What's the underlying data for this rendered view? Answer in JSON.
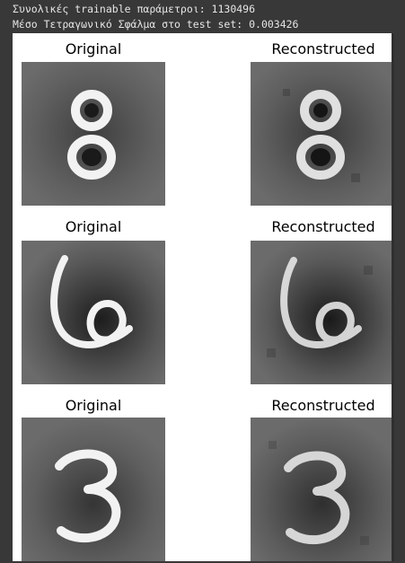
{
  "console": {
    "line1": "Συνολικές trainable παράμετροι: 1130496",
    "line2": "Μέσο Τετραγωνικό Σφάλμα στο test set: 0.003426"
  },
  "figure": {
    "rows": [
      {
        "original_title": "Original",
        "reconstructed_title": "Reconstructed",
        "digit": "8"
      },
      {
        "original_title": "Original",
        "reconstructed_title": "Reconstructed",
        "digit": "6"
      },
      {
        "original_title": "Original",
        "reconstructed_title": "Reconstructed",
        "digit": "3"
      }
    ]
  },
  "colors": {
    "console_bg": "#383838",
    "console_text": "#e6e6e6",
    "panel_bg": "#6b6b6b",
    "stroke": "#f2f2f2"
  }
}
